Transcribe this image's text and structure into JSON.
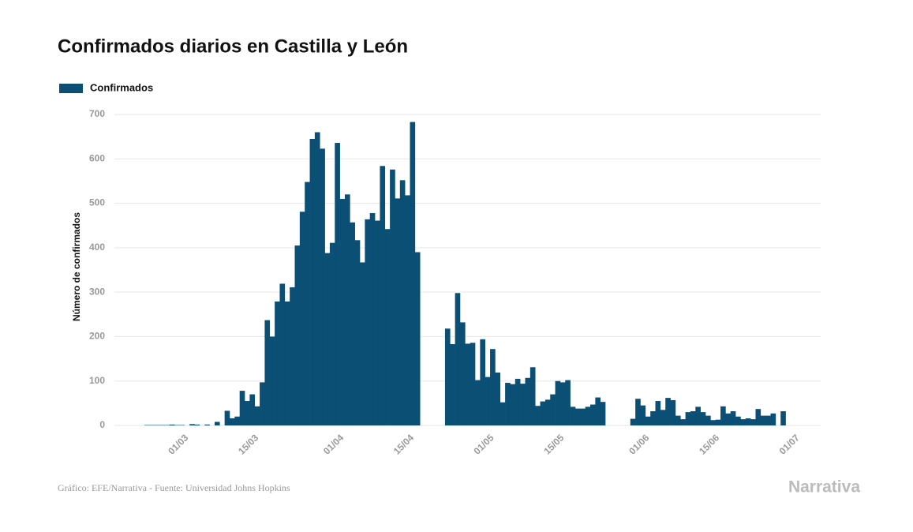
{
  "chart_data": {
    "type": "bar",
    "title": "Confirmados diarios en Castilla y León",
    "y_label": "Número de confirmados",
    "source": "Gráfico: EFE/Narrativa - Fuente: Universidad Johns Hopkins",
    "logo": "Narrativa",
    "categories": [
      null,
      null,
      null,
      null,
      null,
      null,
      null,
      null,
      null,
      null,
      null,
      null,
      null,
      null,
      "01/03",
      null,
      null,
      null,
      null,
      null,
      null,
      null,
      null,
      null,
      null,
      null,
      null,
      null,
      "15/03",
      null,
      null,
      null,
      null,
      null,
      null,
      null,
      null,
      null,
      null,
      null,
      null,
      null,
      null,
      null,
      null,
      "01/04",
      null,
      null,
      null,
      null,
      null,
      null,
      null,
      null,
      null,
      null,
      null,
      null,
      null,
      "15/04",
      null,
      null,
      null,
      null,
      null,
      null,
      null,
      null,
      null,
      null,
      null,
      null,
      null,
      null,
      null,
      "01/05",
      null,
      null,
      null,
      null,
      null,
      null,
      null,
      null,
      null,
      null,
      null,
      null,
      null,
      "15/05",
      null,
      null,
      null,
      null,
      null,
      null,
      null,
      null,
      null,
      null,
      null,
      null,
      null,
      null,
      null,
      null,
      "01/06",
      null,
      null,
      null,
      null,
      null,
      null,
      null,
      null,
      null,
      null,
      null,
      null,
      null,
      "15/06",
      null,
      null,
      null,
      null,
      null,
      null,
      null,
      null,
      null,
      null,
      null,
      null,
      null,
      null,
      null,
      "01/07",
      null,
      null,
      null,
      null
    ],
    "series": [
      {
        "name": "Confirmados",
        "color": "#0b4f75",
        "values": [
          null,
          null,
          null,
          null,
          null,
          null,
          1,
          1,
          1,
          1,
          1,
          2,
          1,
          1,
          0,
          3,
          2,
          0,
          2,
          0,
          8,
          0,
          33,
          16,
          20,
          78,
          55,
          70,
          43,
          97,
          237,
          200,
          279,
          319,
          279,
          311,
          405,
          481,
          548,
          645,
          660,
          623,
          388,
          411,
          636,
          510,
          520,
          457,
          417,
          367,
          464,
          478,
          461,
          584,
          442,
          576,
          511,
          552,
          518,
          683,
          390,
          null,
          null,
          null,
          null,
          null,
          218,
          183,
          298,
          232,
          184,
          186,
          102,
          194,
          109,
          172,
          119,
          52,
          96,
          93,
          105,
          94,
          107,
          131,
          44,
          54,
          58,
          70,
          100,
          97,
          102,
          42,
          38,
          38,
          42,
          47,
          63,
          53,
          null,
          null,
          null,
          null,
          null,
          15,
          60,
          45,
          20,
          32,
          55,
          35,
          62,
          57,
          22,
          14,
          30,
          32,
          42,
          30,
          22,
          12,
          13,
          43,
          27,
          32,
          20,
          14,
          16,
          14,
          37,
          22,
          22,
          27,
          null,
          32,
          null,
          null,
          null,
          null,
          null,
          null,
          null
        ]
      }
    ],
    "ylim": [
      0,
      700
    ],
    "yticks": [
      0,
      100,
      200,
      300,
      400,
      500,
      600,
      700
    ],
    "grid": true
  }
}
